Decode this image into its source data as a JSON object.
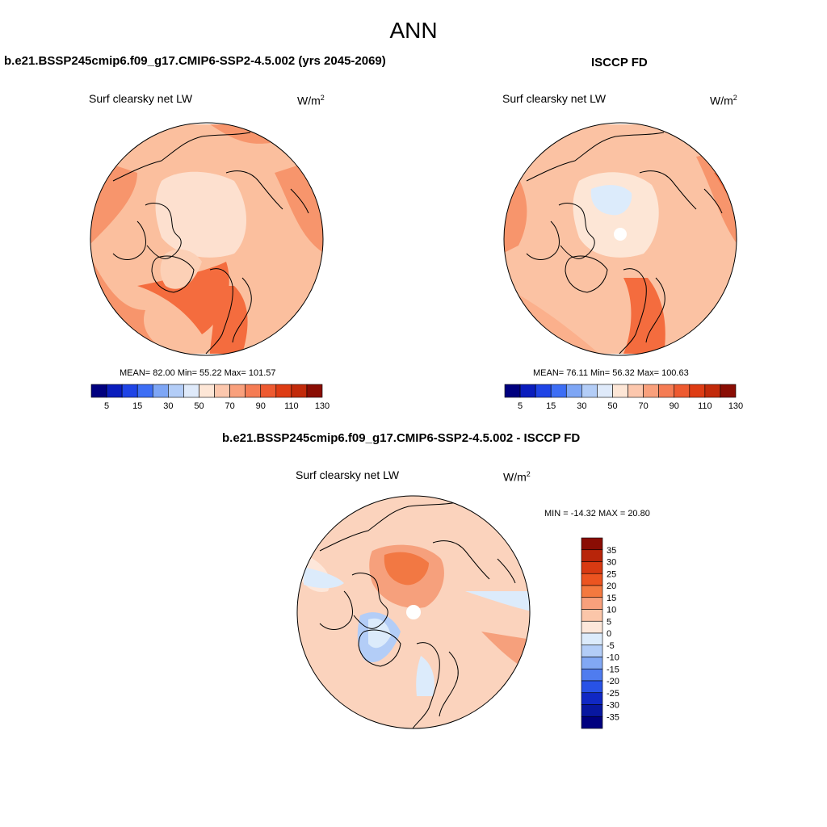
{
  "main_title": "ANN",
  "panel_left": {
    "title": "b.e21.BSSP245cmip6.f09_g17.CMIP6-SSP2-4.5.002 (yrs 2045-2069)",
    "subtitle": "Surf clearsky net LW",
    "units_base": "W/m",
    "units_exp": "2",
    "stats": "MEAN=  82.00  Min=  55.22  Max= 101.57"
  },
  "panel_right": {
    "title": "ISCCP FD",
    "subtitle": "Surf clearsky net LW",
    "units_base": "W/m",
    "units_exp": "2",
    "stats": "MEAN=  76.11  Min=  56.32  Max= 100.63"
  },
  "panel_diff": {
    "title": "b.e21.BSSP245cmip6.f09_g17.CMIP6-SSP2-4.5.002 - ISCCP FD",
    "subtitle": "Surf clearsky net LW",
    "units_base": "W/m",
    "units_exp": "2",
    "minmax": "MIN = -14.32 MAX =  20.80"
  },
  "abs_colorbar": {
    "labels": [
      "5",
      "15",
      "30",
      "50",
      "70",
      "90",
      "110",
      "130"
    ],
    "colors": [
      "#00007f",
      "#0a1dbd",
      "#1f44e6",
      "#3d6ef5",
      "#7ea6f5",
      "#b3cdf7",
      "#dfeafa",
      "#fde6d6",
      "#fcc7ad",
      "#f9a07c",
      "#f57c54",
      "#ee5a30",
      "#de3c14",
      "#c22a0a",
      "#8a0d04"
    ]
  },
  "diff_colorbar": {
    "labels": [
      "35",
      "30",
      "25",
      "20",
      "15",
      "10",
      "5",
      "0",
      "-5",
      "-10",
      "-15",
      "-20",
      "-25",
      "-30",
      "-35"
    ],
    "colors": [
      "#8a0d04",
      "#b8250a",
      "#d83a12",
      "#ec5420",
      "#f4793f",
      "#f8a07c",
      "#fbc6a9",
      "#fde7da",
      "#dcebfb",
      "#b3cdf7",
      "#82a8f4",
      "#4f7cef",
      "#2852e6",
      "#1028c4",
      "#0817a0",
      "#00007f"
    ]
  }
}
